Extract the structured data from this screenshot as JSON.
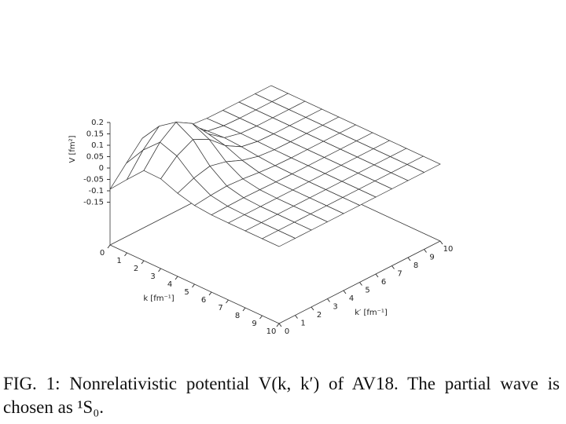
{
  "chart_data": {
    "type": "surface",
    "xlabel": "k [fm⁻¹]",
    "ylabel": "k′ [fm⁻¹]",
    "zlabel": "V [fm²]",
    "x": [
      0,
      1,
      2,
      3,
      4,
      5,
      6,
      7,
      8,
      9,
      10
    ],
    "y": [
      0,
      1,
      2,
      3,
      4,
      5,
      6,
      7,
      8,
      9,
      10
    ],
    "z": [
      [
        -0.093,
        -0.016,
        0.058,
        0.056,
        0.027,
        0.008,
        0.001,
        0,
        0,
        0,
        0
      ],
      [
        -0.016,
        0.077,
        0.146,
        0.12,
        0.057,
        0.016,
        0.003,
        0,
        0,
        0,
        0
      ],
      [
        0.058,
        0.146,
        0.198,
        0.156,
        0.074,
        0.021,
        0.004,
        0,
        0,
        0,
        0
      ],
      [
        0.056,
        0.12,
        0.156,
        0.121,
        0.057,
        0.016,
        0.003,
        0,
        0,
        0,
        0
      ],
      [
        0.027,
        0.057,
        0.074,
        0.057,
        0.027,
        0.008,
        0.001,
        0,
        0,
        0,
        0
      ],
      [
        0.008,
        0.016,
        0.021,
        0.016,
        0.008,
        0.002,
        0,
        0,
        0,
        0,
        0
      ],
      [
        0.001,
        0.003,
        0.004,
        0.003,
        0.001,
        0,
        0,
        0,
        0,
        0,
        0
      ],
      [
        0,
        0,
        0,
        0,
        0,
        0,
        0,
        0,
        0,
        0,
        0
      ],
      [
        0,
        0,
        0,
        0,
        0,
        0,
        0,
        0,
        0,
        0,
        0
      ],
      [
        0,
        0,
        0,
        0,
        0,
        0,
        0,
        0,
        0,
        0,
        0
      ],
      [
        0,
        0,
        0,
        0,
        0,
        0,
        0,
        0,
        0,
        0,
        0
      ]
    ],
    "xlim": [
      0,
      10
    ],
    "ylim": [
      0,
      10
    ],
    "zlim": [
      -0.15,
      0.2
    ],
    "xticks": [
      0,
      1,
      2,
      3,
      4,
      5,
      6,
      7,
      8,
      9,
      10
    ],
    "yticks": [
      0,
      1,
      2,
      3,
      4,
      5,
      6,
      7,
      8,
      9,
      10
    ],
    "zticks": [
      -0.15,
      -0.1,
      -0.05,
      0,
      0.05,
      0.1,
      0.15,
      0.2
    ],
    "color": "#333333"
  },
  "caption": "FIG. 1: Nonrelativistic potential V(k, k′) of AV18. The partial wave is chosen as ¹S₀."
}
